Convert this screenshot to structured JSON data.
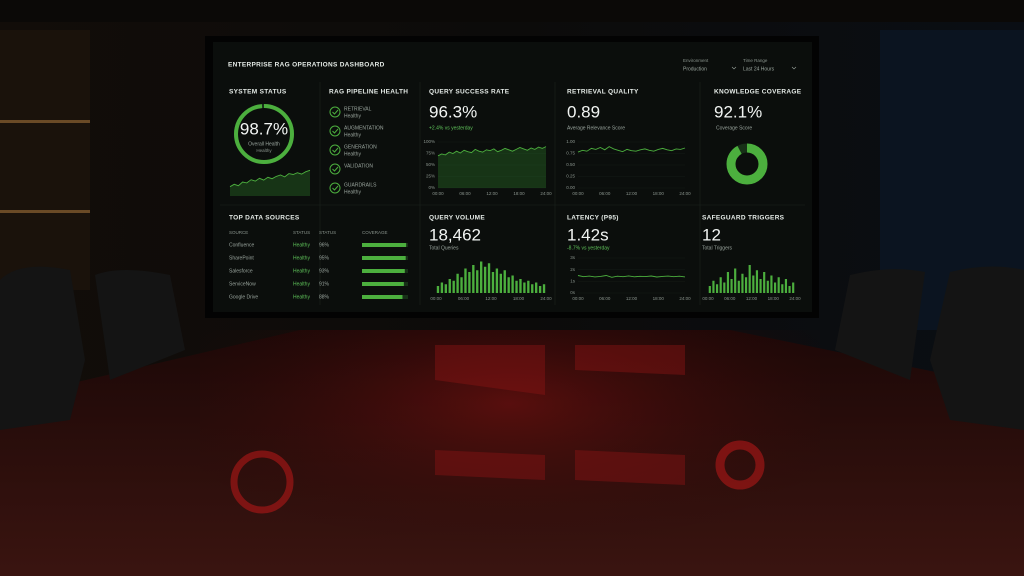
{
  "header": {
    "title": "ENTERPRISE RAG OPERATIONS DASHBOARD",
    "filters": [
      {
        "label": "Environment",
        "value": "Production"
      },
      {
        "label": "Time Range",
        "value": "Last 24 Hours"
      }
    ]
  },
  "system_status": {
    "title": "SYSTEM STATUS",
    "value": 98.7,
    "value_label": "98.7%",
    "label": "Overall Health",
    "status": "Healthy",
    "trend": [
      20,
      25,
      22,
      30,
      28,
      35,
      32,
      38,
      34,
      40,
      37,
      42,
      45,
      41,
      48,
      46,
      50,
      47,
      52,
      55
    ],
    "ylim": [
      0,
      60
    ]
  },
  "pipeline": {
    "title": "RAG PIPELINE HEALTH",
    "stages": [
      {
        "name": "RETRIEVAL",
        "status": "Healthy"
      },
      {
        "name": "AUGMENTATION",
        "status": "Healthy"
      },
      {
        "name": "GENERATION",
        "status": "Healthy"
      },
      {
        "name": "VALIDATION"
      },
      {
        "name": "GUARDRAILS",
        "status": "Healthy"
      }
    ]
  },
  "query_success": {
    "title": "QUERY SUCCESS RATE",
    "value": "96.3%",
    "delta": "+2.4% vs yesterday",
    "ylim": [
      0,
      100
    ],
    "yticks": [
      {
        "value": 100,
        "label": "100%"
      },
      {
        "value": 75,
        "label": "75%"
      },
      {
        "value": 50,
        "label": "50%"
      },
      {
        "value": 25,
        "label": "25%"
      },
      {
        "value": 0,
        "label": "0%"
      }
    ],
    "xticks": [
      "00:00",
      "06:00",
      "12:00",
      "18:00",
      "24:00"
    ],
    "values": [
      70,
      74,
      72,
      78,
      75,
      80,
      76,
      82,
      79,
      77,
      84,
      80,
      78,
      83,
      81,
      85,
      79,
      82,
      86,
      83,
      80,
      84,
      88,
      85,
      82,
      87,
      84,
      89,
      86,
      90
    ]
  },
  "retrieval_quality": {
    "title": "RETRIEVAL QUALITY",
    "value": "0.89",
    "label": "Average Relevance Score",
    "ylim": [
      0,
      1
    ],
    "yticks": [
      {
        "value": 1,
        "label": "1.00"
      },
      {
        "value": 0.75,
        "label": "0.75"
      },
      {
        "value": 0.5,
        "label": "0.50"
      },
      {
        "value": 0.25,
        "label": "0.25"
      },
      {
        "value": 0,
        "label": "0.00"
      }
    ],
    "xticks": [
      "00:00",
      "06:00",
      "12:00",
      "18:00",
      "24:00"
    ],
    "values": [
      0.78,
      0.82,
      0.8,
      0.86,
      0.84,
      0.88,
      0.83,
      0.9,
      0.85,
      0.82,
      0.79,
      0.84,
      0.81,
      0.8,
      0.83,
      0.85,
      0.82,
      0.8,
      0.84,
      0.86,
      0.83,
      0.81,
      0.85,
      0.84,
      0.87
    ]
  },
  "knowledge_coverage": {
    "title": "KNOWLEDGE COVERAGE",
    "value": 92.1,
    "value_label": "92.1%",
    "label": "Coverage Score"
  },
  "data_sources": {
    "title": "TOP DATA SOURCES",
    "columns": [
      "SOURCE",
      "STATUS",
      "STATUS",
      "COVERAGE"
    ],
    "rows": [
      {
        "source": "Confluence",
        "status": "Healthy",
        "coverage": 96,
        "coverage_label": "96%"
      },
      {
        "source": "SharePoint",
        "status": "Healthy",
        "coverage": 95,
        "coverage_label": "95%"
      },
      {
        "source": "Salesforce",
        "status": "Healthy",
        "coverage": 93,
        "coverage_label": "93%"
      },
      {
        "source": "ServiceNow",
        "status": "Healthy",
        "coverage": 91,
        "coverage_label": "91%"
      },
      {
        "source": "Google Drive",
        "status": "Healthy",
        "coverage": 88,
        "coverage_label": "88%"
      }
    ]
  },
  "query_volume": {
    "title": "QUERY VOLUME",
    "value": "18,462",
    "label": "Total Queries",
    "ylim": [
      0,
      100
    ],
    "xticks": [
      "00:00",
      "06:00",
      "12:00",
      "18:00",
      "24:00"
    ],
    "values": [
      20,
      30,
      25,
      40,
      35,
      55,
      45,
      70,
      60,
      80,
      65,
      90,
      75,
      85,
      60,
      70,
      55,
      65,
      45,
      50,
      35,
      40,
      30,
      35,
      25,
      30,
      20,
      25
    ]
  },
  "latency": {
    "title": "LATENCY (P95)",
    "value": "1.42s",
    "delta": "-8.7% vs yesterday",
    "ylim": [
      0,
      3
    ],
    "yticks": [
      {
        "value": 3,
        "label": "3s"
      },
      {
        "value": 2,
        "label": "2s"
      },
      {
        "value": 1,
        "label": "1s"
      },
      {
        "value": 0,
        "label": "0s"
      }
    ],
    "xticks": [
      "00:00",
      "06:00",
      "12:00",
      "18:00",
      "24:00"
    ],
    "values": [
      1.5,
      1.4,
      1.45,
      1.38,
      1.42,
      1.5,
      1.35,
      1.44,
      1.4,
      1.47,
      1.39,
      1.43,
      1.41,
      1.46,
      1.37,
      1.42,
      1.45,
      1.4,
      1.44,
      1.38
    ]
  },
  "safeguard": {
    "title": "SAFEGUARD TRIGGERS",
    "value": "12",
    "label": "Total Triggers",
    "ylim": [
      0,
      100
    ],
    "xticks": [
      "00:00",
      "06:00",
      "12:00",
      "18:00",
      "24:00"
    ],
    "values": [
      20,
      35,
      25,
      45,
      30,
      60,
      40,
      70,
      35,
      55,
      45,
      80,
      50,
      65,
      40,
      60,
      35,
      50,
      30,
      45,
      25,
      40,
      20,
      30
    ]
  }
}
